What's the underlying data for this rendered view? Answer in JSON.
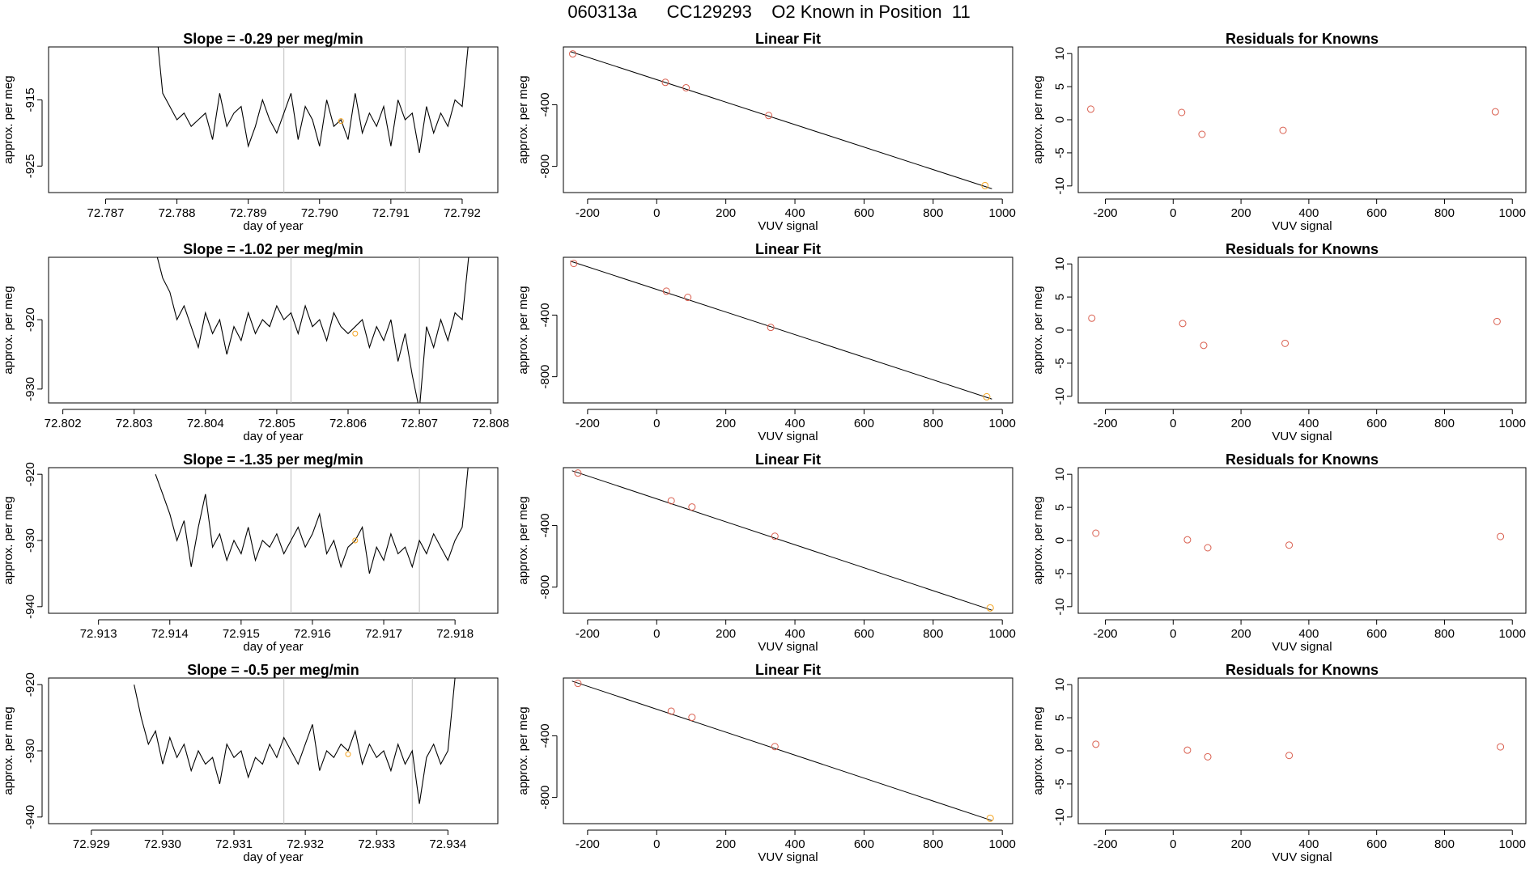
{
  "page": {
    "title": "060313a      CC129293    O2 Known in Position  11"
  },
  "colors": {
    "line": "#000000",
    "vline": "#bfbfbf",
    "known_point": "#d95f4f",
    "highlight_point": "#f5a623"
  },
  "chart_data": [
    {
      "type": "line",
      "title": "Slope =  -0.29  per meg/min",
      "xlabel": "day of year",
      "ylabel": "approx. per meg",
      "xlim": [
        72.7862,
        72.7925
      ],
      "ylim": [
        -929,
        -907
      ],
      "xticks": [
        "72.787",
        "72.788",
        "72.789",
        "72.790",
        "72.791",
        "72.792"
      ],
      "yticks": [
        "-915",
        "-925"
      ],
      "vlines": [
        72.7895,
        72.7912
      ],
      "highlight": [
        72.7903,
        -918.2
      ],
      "x": [
        72.7877,
        72.7878,
        72.7879,
        72.788,
        72.7881,
        72.7882,
        72.7883,
        72.7884,
        72.7885,
        72.7886,
        72.7887,
        72.7888,
        72.7889,
        72.789,
        72.7891,
        72.7892,
        72.7893,
        72.7894,
        72.7895,
        72.7896,
        72.7897,
        72.7898,
        72.7899,
        72.79,
        72.7901,
        72.7902,
        72.7903,
        72.7904,
        72.7905,
        72.7906,
        72.7907,
        72.7908,
        72.7909,
        72.791,
        72.7911,
        72.7912,
        72.7913,
        72.7914,
        72.7915,
        72.7916,
        72.7917,
        72.7918,
        72.7919,
        72.792,
        72.7921
      ],
      "y": [
        -903,
        -914,
        -916,
        -918,
        -917,
        -919,
        -918,
        -917,
        -921,
        -914,
        -919,
        -917,
        -916,
        -922,
        -919,
        -915,
        -918,
        -920,
        -917,
        -914,
        -921,
        -916,
        -918,
        -922,
        -915,
        -919,
        -918,
        -921,
        -914,
        -920,
        -917,
        -919,
        -916,
        -922,
        -915,
        -918,
        -917,
        -923,
        -916,
        -920,
        -917,
        -919,
        -915,
        -916,
        -905
      ]
    },
    {
      "type": "scatter",
      "title": "Linear Fit",
      "xlabel": "VUV signal",
      "ylabel": "approx. per meg",
      "xlim": [
        -270,
        1030
      ],
      "ylim": [
        -970,
        -25
      ],
      "xticks": [
        -200,
        0,
        200,
        400,
        600,
        800,
        1000
      ],
      "yticks": [
        -400,
        -800
      ],
      "fit": [
        [
          -250,
          -55
        ],
        [
          970,
          -945
        ]
      ],
      "x": [
        -243,
        25,
        85,
        324,
        950
      ],
      "y": [
        -70,
        -255,
        -290,
        -470,
        -925
      ]
    },
    {
      "type": "scatter",
      "title": "Residuals for Knowns",
      "xlabel": "VUV signal",
      "ylabel": "approx. per meg",
      "xlim": [
        -280,
        1040
      ],
      "ylim": [
        -11,
        11
      ],
      "xticks": [
        -200,
        0,
        200,
        400,
        600,
        800,
        1000
      ],
      "yticks": [
        10,
        5,
        0,
        -5,
        -10
      ],
      "x": [
        -243,
        25,
        85,
        324,
        950
      ],
      "y": [
        1.6,
        1.1,
        -2.2,
        -1.6,
        1.2
      ]
    },
    {
      "type": "line",
      "title": "Slope =  -1.02  per meg/min",
      "xlabel": "day of year",
      "ylabel": "approx. per meg",
      "xlim": [
        72.8018,
        72.8081
      ],
      "ylim": [
        -932,
        -911
      ],
      "xticks": [
        "72.802",
        "72.803",
        "72.804",
        "72.805",
        "72.806",
        "72.807",
        "72.808"
      ],
      "yticks": [
        "-920",
        "-930"
      ],
      "vlines": [
        72.8052,
        72.807
      ],
      "highlight": [
        72.8061,
        -922
      ],
      "x": [
        72.8033,
        72.8034,
        72.8035,
        72.8036,
        72.8037,
        72.8038,
        72.8039,
        72.804,
        72.8041,
        72.8042,
        72.8043,
        72.8044,
        72.8045,
        72.8046,
        72.8047,
        72.8048,
        72.8049,
        72.805,
        72.8051,
        72.8052,
        72.8053,
        72.8054,
        72.8055,
        72.8056,
        72.8057,
        72.8058,
        72.8059,
        72.806,
        72.8061,
        72.8062,
        72.8063,
        72.8064,
        72.8065,
        72.8066,
        72.8067,
        72.8068,
        72.8069,
        72.807,
        72.8071,
        72.8072,
        72.8073,
        72.8074,
        72.8075,
        72.8076,
        72.8077
      ],
      "y": [
        -910,
        -914,
        -916,
        -920,
        -918,
        -921,
        -924,
        -919,
        -922,
        -920,
        -925,
        -921,
        -923,
        -919,
        -922,
        -920,
        -921,
        -918,
        -920,
        -919,
        -922,
        -918,
        -921,
        -920,
        -923,
        -919,
        -921,
        -922,
        -921,
        -920,
        -924,
        -921,
        -923,
        -920,
        -926,
        -922,
        -928,
        -933,
        -921,
        -924,
        -920,
        -923,
        -919,
        -920,
        -910
      ]
    },
    {
      "type": "scatter",
      "title": "Linear Fit",
      "xlabel": "VUV signal",
      "ylabel": "approx. per meg",
      "xlim": [
        -270,
        1030
      ],
      "ylim": [
        -970,
        -25
      ],
      "xticks": [
        -200,
        0,
        200,
        400,
        600,
        800,
        1000
      ],
      "yticks": [
        -400,
        -800
      ],
      "fit": [
        [
          -250,
          -50
        ],
        [
          970,
          -945
        ]
      ],
      "x": [
        -240,
        28,
        90,
        330,
        955
      ],
      "y": [
        -65,
        -245,
        -285,
        -480,
        -930
      ]
    },
    {
      "type": "scatter",
      "title": "Residuals for Knowns",
      "xlabel": "VUV signal",
      "ylabel": "approx. per meg",
      "xlim": [
        -280,
        1040
      ],
      "ylim": [
        -11,
        11
      ],
      "xticks": [
        -200,
        0,
        200,
        400,
        600,
        800,
        1000
      ],
      "yticks": [
        10,
        5,
        0,
        -5,
        -10
      ],
      "x": [
        -240,
        28,
        90,
        330,
        955
      ],
      "y": [
        1.8,
        1.0,
        -2.3,
        -2.0,
        1.3
      ]
    },
    {
      "type": "line",
      "title": "Slope =  -1.35  per meg/min",
      "xlabel": "day of year",
      "ylabel": "approx. per meg",
      "xlim": [
        72.9123,
        72.9186
      ],
      "ylim": [
        -941,
        -919
      ],
      "xticks": [
        "72.913",
        "72.914",
        "72.915",
        "72.916",
        "72.917",
        "72.918"
      ],
      "yticks": [
        "-920",
        "-930",
        "-940"
      ],
      "vlines": [
        72.9157,
        72.9175
      ],
      "highlight": [
        72.9166,
        -930
      ],
      "x": [
        72.9138,
        72.9139,
        72.914,
        72.9141,
        72.9142,
        72.9143,
        72.9144,
        72.9145,
        72.9146,
        72.9147,
        72.9148,
        72.9149,
        72.915,
        72.9151,
        72.9152,
        72.9153,
        72.9154,
        72.9155,
        72.9156,
        72.9157,
        72.9158,
        72.9159,
        72.916,
        72.9161,
        72.9162,
        72.9163,
        72.9164,
        72.9165,
        72.9166,
        72.9167,
        72.9168,
        72.9169,
        72.917,
        72.9171,
        72.9172,
        72.9173,
        72.9174,
        72.9175,
        72.9176,
        72.9177,
        72.9178,
        72.9179,
        72.918,
        72.9181,
        72.9182
      ],
      "y": [
        -920,
        -923,
        -926,
        -930,
        -927,
        -934,
        -928,
        -923,
        -931,
        -929,
        -933,
        -930,
        -932,
        -928,
        -933,
        -930,
        -931,
        -929,
        -932,
        -930,
        -928,
        -931,
        -929,
        -926,
        -932,
        -930,
        -934,
        -931,
        -930,
        -928,
        -935,
        -931,
        -933,
        -929,
        -932,
        -931,
        -934,
        -930,
        -932,
        -929,
        -931,
        -933,
        -930,
        -928,
        -917
      ]
    },
    {
      "type": "scatter",
      "title": "Linear Fit",
      "xlabel": "VUV signal",
      "ylabel": "approx. per meg",
      "xlim": [
        -270,
        1030
      ],
      "ylim": [
        -970,
        -25
      ],
      "xticks": [
        -200,
        0,
        200,
        400,
        600,
        800,
        1000
      ],
      "yticks": [
        -400,
        -800
      ],
      "fit": [
        [
          -245,
          -45
        ],
        [
          970,
          -950
        ]
      ],
      "x": [
        -228,
        42,
        102,
        342,
        965
      ],
      "y": [
        -60,
        -240,
        -280,
        -470,
        -935
      ]
    },
    {
      "type": "scatter",
      "title": "Residuals for Knowns",
      "xlabel": "VUV signal",
      "ylabel": "approx. per meg",
      "xlim": [
        -280,
        1040
      ],
      "ylim": [
        -11,
        11
      ],
      "xticks": [
        -200,
        0,
        200,
        400,
        600,
        800,
        1000
      ],
      "yticks": [
        10,
        5,
        0,
        -5,
        -10
      ],
      "x": [
        -228,
        42,
        102,
        342,
        965
      ],
      "y": [
        1.1,
        0.1,
        -1.1,
        -0.7,
        0.6
      ]
    },
    {
      "type": "line",
      "title": "Slope =  -0.5  per meg/min",
      "xlabel": "day of year",
      "ylabel": "approx. per meg",
      "xlim": [
        72.9284,
        72.9347
      ],
      "ylim": [
        -941,
        -919
      ],
      "xticks": [
        "72.929",
        "72.930",
        "72.931",
        "72.932",
        "72.933",
        "72.934"
      ],
      "yticks": [
        "-920",
        "-930",
        "-940"
      ],
      "vlines": [
        72.9317,
        72.9335
      ],
      "highlight": [
        72.9326,
        -930.5
      ],
      "x": [
        72.9296,
        72.9297,
        72.9298,
        72.9299,
        72.93,
        72.9301,
        72.9302,
        72.9303,
        72.9304,
        72.9305,
        72.9306,
        72.9307,
        72.9308,
        72.9309,
        72.931,
        72.9311,
        72.9312,
        72.9313,
        72.9314,
        72.9315,
        72.9316,
        72.9317,
        72.9318,
        72.9319,
        72.932,
        72.9321,
        72.9322,
        72.9323,
        72.9324,
        72.9325,
        72.9326,
        72.9327,
        72.9328,
        72.9329,
        72.933,
        72.9331,
        72.9332,
        72.9333,
        72.9334,
        72.9335,
        72.9336,
        72.9337,
        72.9338,
        72.9339,
        72.934,
        72.9341
      ],
      "y": [
        -920,
        -925,
        -929,
        -927,
        -932,
        -928,
        -931,
        -929,
        -933,
        -930,
        -932,
        -931,
        -935,
        -929,
        -931,
        -930,
        -934,
        -931,
        -932,
        -929,
        -931,
        -928,
        -930,
        -932,
        -929,
        -926,
        -933,
        -930,
        -931,
        -929,
        -930,
        -927,
        -932,
        -929,
        -931,
        -930,
        -933,
        -929,
        -932,
        -930,
        -938,
        -931,
        -929,
        -932,
        -930,
        -919
      ]
    },
    {
      "type": "scatter",
      "title": "Linear Fit",
      "xlabel": "VUV signal",
      "ylabel": "approx. per meg",
      "xlim": [
        -270,
        1030
      ],
      "ylim": [
        -970,
        -25
      ],
      "xticks": [
        -200,
        0,
        200,
        400,
        600,
        800,
        1000
      ],
      "yticks": [
        -400,
        -800
      ],
      "fit": [
        [
          -245,
          -45
        ],
        [
          970,
          -950
        ]
      ],
      "x": [
        -228,
        42,
        102,
        342,
        965
      ],
      "y": [
        -60,
        -240,
        -280,
        -470,
        -935
      ]
    },
    {
      "type": "scatter",
      "title": "Residuals for Knowns",
      "xlabel": "VUV signal",
      "ylabel": "approx. per meg",
      "xlim": [
        -280,
        1040
      ],
      "ylim": [
        -11,
        11
      ],
      "xticks": [
        -200,
        0,
        200,
        400,
        600,
        800,
        1000
      ],
      "yticks": [
        10,
        5,
        0,
        -5,
        -10
      ],
      "x": [
        -228,
        42,
        102,
        342,
        965
      ],
      "y": [
        1.0,
        0.1,
        -0.9,
        -0.7,
        0.6
      ]
    }
  ]
}
